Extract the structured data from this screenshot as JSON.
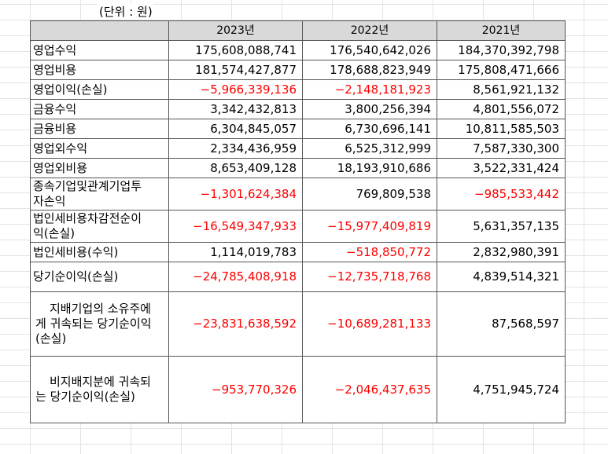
{
  "unit_label": "(단위 : 원)",
  "columns": [
    "2023년",
    "2022년",
    "2021년"
  ],
  "rows": [
    {
      "label": "영업수익",
      "values": [
        "175,608,088,741",
        "176,540,642,026",
        "184,370,392,798"
      ]
    },
    {
      "label": "영업비용",
      "values": [
        "181,574,427,877",
        "178,688,823,949",
        "175,808,471,666"
      ]
    },
    {
      "label": "영업이익(손실)",
      "values": [
        "−5,966,339,136",
        "−2,148,181,923",
        "8,561,921,132"
      ]
    },
    {
      "label": "금융수익",
      "values": [
        "3,342,432,813",
        "3,800,256,394",
        "4,801,556,072"
      ]
    },
    {
      "label": "금융비용",
      "values": [
        "6,304,845,057",
        "6,730,696,141",
        "10,811,585,503"
      ]
    },
    {
      "label": "영업외수익",
      "values": [
        "2,334,436,959",
        "6,525,312,999",
        "7,587,330,300"
      ]
    },
    {
      "label": "영업외비용",
      "values": [
        "8,653,409,128",
        "18,193,910,686",
        "3,522,331,424"
      ]
    },
    {
      "label_lines": [
        "종속기업및관계기업투",
        "자손익"
      ],
      "values": [
        "−1,301,624,384",
        "769,809,538",
        "−985,533,442"
      ]
    },
    {
      "label_lines": [
        "법인세비용차감전순이",
        "익(손실)"
      ],
      "values": [
        "−16,549,347,933",
        "−15,977,409,819",
        "5,631,357,135"
      ]
    },
    {
      "label": "법인세비용(수익)",
      "values": [
        "1,114,019,783",
        "−518,850,772",
        "2,832,980,391"
      ]
    },
    {
      "label": "당기순이익(손실)",
      "values": [
        "−24,785,408,918",
        "−12,735,718,768",
        "4,839,514,321"
      ]
    },
    {
      "label_lines": [
        "지배기업의 소유주에",
        "게 귀속되는 당기순이익",
        "(손실)"
      ],
      "values": [
        "−23,831,638,592",
        "−10,689,281,133",
        "87,568,597"
      ]
    },
    {
      "label_lines": [
        "비지배지분에 귀속되",
        "는 당기순이익(손실)"
      ],
      "values": [
        "−953,770,326",
        "−2,046,437,635",
        "4,751,945,724"
      ]
    }
  ],
  "colors": {
    "negative": "#ff0000",
    "header_bg": "#d9d9d9"
  }
}
